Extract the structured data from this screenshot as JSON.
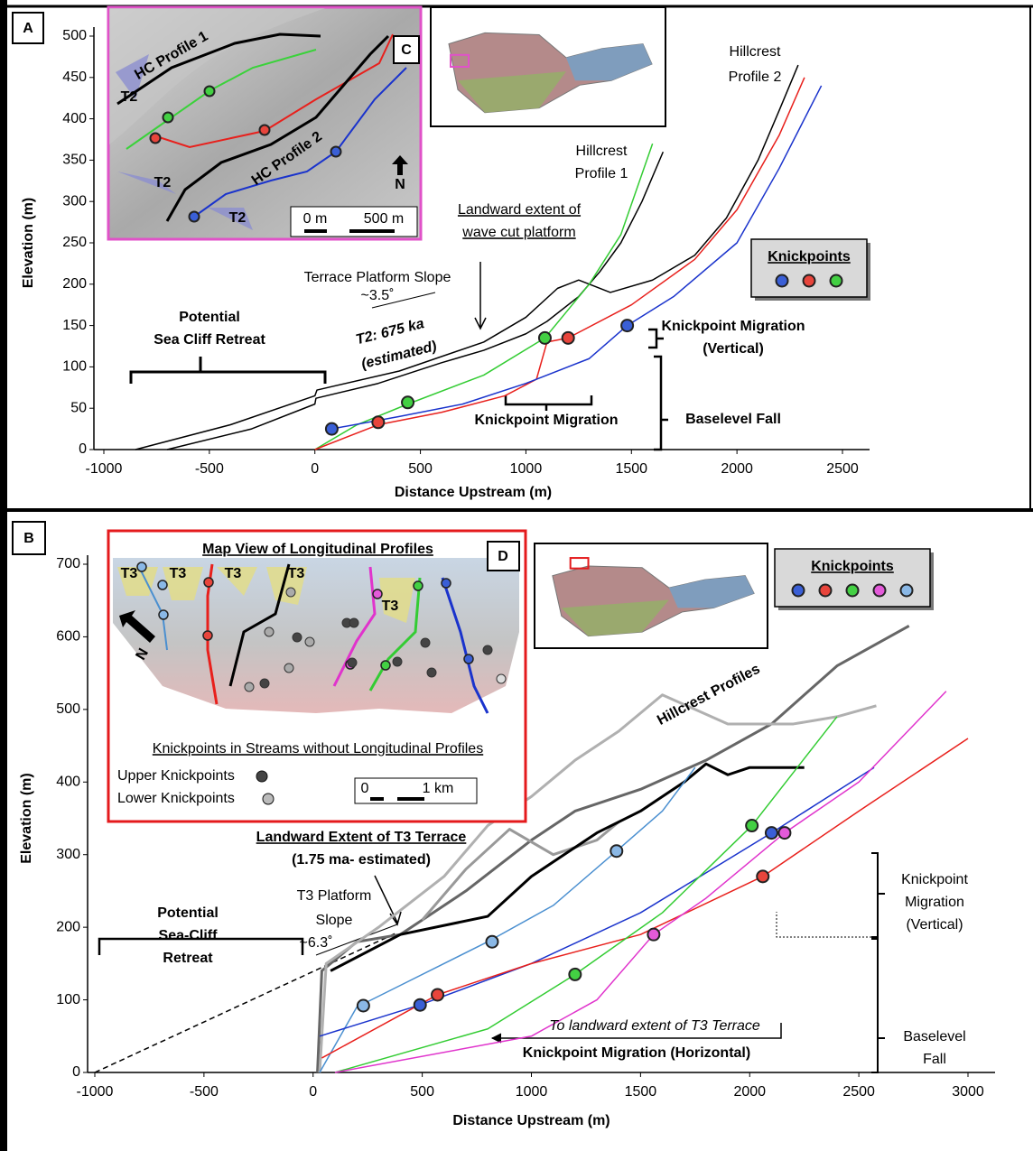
{
  "chart_data": [
    {
      "type": "line",
      "panel": "A",
      "xlabel": "Distance Upstream (m)",
      "ylabel": "Elevation (m)",
      "xlim": [
        -1000,
        2500
      ],
      "xticks": [
        -1000,
        -500,
        0,
        500,
        1000,
        1500,
        2000,
        2500
      ],
      "ylim": [
        0,
        500
      ],
      "yticks": [
        0,
        50,
        100,
        150,
        200,
        250,
        300,
        350,
        400,
        450,
        500
      ],
      "series": [
        {
          "color": "#000000",
          "linewidth": 1.5,
          "x": [
            -700,
            -300,
            0,
            5,
            300,
            600,
            800,
            1000,
            1100,
            1250,
            1350,
            1450,
            1550,
            1650
          ],
          "values": [
            0,
            25,
            55,
            62,
            80,
            105,
            120,
            140,
            155,
            185,
            215,
            250,
            300,
            360
          ]
        },
        {
          "color": "#000000",
          "linewidth": 1.5,
          "x": [
            -850,
            -400,
            0,
            10,
            400,
            800,
            1000,
            1150,
            1250,
            1400,
            1600,
            1800,
            1950,
            2100,
            2200,
            2290
          ],
          "values": [
            0,
            30,
            65,
            72,
            95,
            130,
            160,
            195,
            205,
            190,
            205,
            235,
            280,
            350,
            410,
            465
          ]
        },
        {
          "color": "#33cc33",
          "linewidth": 1.5,
          "x": [
            0,
            200,
            440,
            800,
            1090,
            1300,
            1450,
            1600
          ],
          "values": [
            0,
            30,
            55,
            90,
            135,
            200,
            260,
            370
          ]
        },
        {
          "color": "#e8201c",
          "linewidth": 1.5,
          "x": [
            0,
            300,
            600,
            900,
            1050,
            1100,
            1200,
            1500,
            1800,
            2000,
            2200,
            2320
          ],
          "values": [
            0,
            30,
            45,
            65,
            85,
            130,
            135,
            175,
            230,
            290,
            380,
            450
          ]
        },
        {
          "color": "#1a33cc",
          "linewidth": 1.5,
          "x": [
            80,
            400,
            700,
            1000,
            1300,
            1480,
            1700,
            2000,
            2200,
            2400
          ],
          "values": [
            25,
            40,
            55,
            80,
            110,
            150,
            185,
            250,
            340,
            440
          ]
        }
      ],
      "knickpoints": {
        "title": "Knickpoints",
        "series": [
          {
            "color": "#3a5fd6",
            "x": [
              80,
              1480
            ],
            "values": [
              25,
              150
            ]
          },
          {
            "color": "#e8453c",
            "x": [
              300,
              1200
            ],
            "values": [
              33,
              135
            ]
          },
          {
            "color": "#43d043",
            "x": [
              440,
              1090
            ],
            "values": [
              57,
              135
            ]
          }
        ]
      },
      "annotations": [
        "Potential",
        "Sea Cliff Retreat",
        "Terrace Platform Slope",
        "~3.5˚",
        "T2: 675 ka",
        "(estimated)",
        "Landward extent of",
        "wave cut platform",
        "Hillcrest",
        "Profile 1",
        "Hillcrest",
        "Profile 2",
        "Knickpoint Migration",
        "Knickpoint Migration",
        "(Vertical)",
        "Baselevel Fall"
      ],
      "inset": {
        "label": "C",
        "texts": [
          "HC Profile 1",
          "T2",
          "T2",
          "HC Profile 2",
          "T2",
          "N",
          "0 m",
          "500 m"
        ]
      }
    },
    {
      "type": "line",
      "panel": "B",
      "xlabel": "Distance Upstream (m)",
      "ylabel": "Elevation (m)",
      "xlim": [
        -1000,
        3000
      ],
      "xticks": [
        -1000,
        -500,
        0,
        500,
        1000,
        1500,
        2000,
        2500,
        3000
      ],
      "ylim": [
        0,
        700
      ],
      "yticks": [
        0,
        100,
        200,
        300,
        400,
        500,
        600,
        700
      ],
      "series": [
        {
          "color": "#666666",
          "linewidth": 3,
          "x": [
            20,
            40,
            200,
            400,
            700,
            1000,
            1200,
            1500,
            1800,
            2100,
            2400,
            2730
          ],
          "values": [
            0,
            140,
            180,
            190,
            250,
            320,
            360,
            390,
            430,
            480,
            560,
            615
          ]
        },
        {
          "color": "#b0b0b0",
          "linewidth": 3,
          "x": [
            30,
            60,
            300,
            600,
            800,
            1000,
            1200,
            1400,
            1600,
            1900,
            2200,
            2400,
            2580
          ],
          "values": [
            0,
            150,
            200,
            270,
            340,
            380,
            430,
            470,
            520,
            480,
            480,
            490,
            505
          ]
        },
        {
          "color": "#999999",
          "linewidth": 3,
          "x": [
            500,
            700,
            900,
            1100,
            1300,
            1400
          ],
          "values": [
            210,
            280,
            335,
            300,
            320,
            345
          ]
        },
        {
          "color": "#000000",
          "linewidth": 3,
          "x": [
            80,
            400,
            800,
            1000,
            1300,
            1500,
            1700,
            1800,
            1900,
            2000,
            2100,
            2250
          ],
          "values": [
            140,
            190,
            215,
            270,
            330,
            360,
            400,
            425,
            410,
            420,
            420,
            420
          ]
        },
        {
          "color": "#4a8fd0",
          "linewidth": 1.5,
          "x": [
            30,
            200,
            400,
            800,
            1100,
            1390,
            1600,
            1750
          ],
          "values": [
            0,
            90,
            120,
            180,
            230,
            305,
            360,
            420
          ]
        },
        {
          "color": "#1a33cc",
          "linewidth": 1.5,
          "x": [
            30,
            490,
            1000,
            1500,
            2100,
            2570
          ],
          "values": [
            50,
            93,
            150,
            220,
            330,
            420
          ]
        },
        {
          "color": "#e8201c",
          "linewidth": 1.5,
          "x": [
            40,
            570,
            1000,
            1500,
            2060,
            2500,
            3000
          ],
          "values": [
            20,
            107,
            150,
            190,
            270,
            360,
            460
          ]
        },
        {
          "color": "#33cc33",
          "linewidth": 1.5,
          "x": [
            100,
            800,
            1200,
            1600,
            2010,
            2400
          ],
          "values": [
            0,
            60,
            135,
            220,
            340,
            490
          ]
        },
        {
          "color": "#e033cc",
          "linewidth": 1.5,
          "x": [
            100,
            1000,
            1300,
            1560,
            1800,
            2160,
            2500,
            2900
          ],
          "values": [
            0,
            50,
            100,
            190,
            240,
            330,
            400,
            525
          ]
        }
      ],
      "knickpoints": {
        "title": "Knickpoints",
        "series": [
          {
            "color": "#3a5fd6",
            "x": [
              490,
              2100
            ],
            "values": [
              93,
              330
            ]
          },
          {
            "color": "#e8453c",
            "x": [
              570,
              2060
            ],
            "values": [
              107,
              270
            ]
          },
          {
            "color": "#43d043",
            "x": [
              1200,
              2010
            ],
            "values": [
              135,
              340
            ]
          },
          {
            "color": "#e35ad9",
            "x": [
              1560,
              2160
            ],
            "values": [
              190,
              330
            ]
          },
          {
            "color": "#8ab8e6",
            "x": [
              230,
              820,
              1390
            ],
            "values": [
              92,
              180,
              305
            ]
          }
        ]
      },
      "annotations": [
        "Potential",
        "Sea-Cliff",
        "Retreat",
        "Landward Extent of T3 Terrace",
        "(1.75 ma- estimated)",
        "T3 Platform",
        "Slope",
        "~6.3˚",
        "Hillcrest Profiles",
        "To landward extent of T3 Terrace",
        "Knickpoint Migration (Horizontal)",
        "Knickpoint",
        "Migration",
        "(Vertical)",
        "Baselevel",
        "Fall"
      ],
      "inset": {
        "label": "D",
        "texts": [
          "Map View of Longitudinal Profiles",
          "T3",
          "T3",
          "T3",
          "T3",
          "T3",
          "N",
          "Knickpoints in Streams without Longitudinal Profiles",
          "Upper Knickpoints",
          "Lower Knickpoints",
          "0",
          "1 km"
        ]
      }
    }
  ]
}
